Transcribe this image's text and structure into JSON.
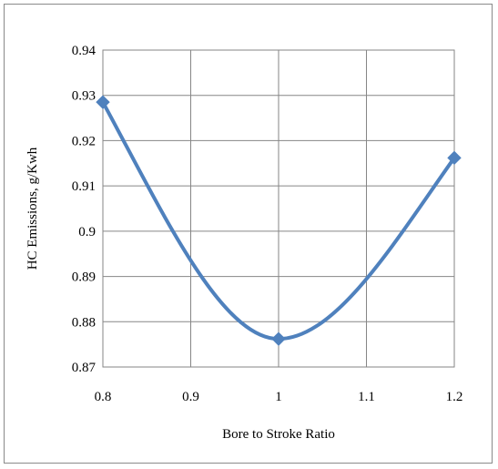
{
  "chart_data": {
    "type": "line",
    "title": "",
    "xlabel": "Bore to Stroke Ratio",
    "ylabel": "HC Emissions, g/Kwh",
    "xlim": [
      0.8,
      1.2
    ],
    "ylim": [
      0.87,
      0.94
    ],
    "x_ticks": [
      0.8,
      0.9,
      1.0,
      1.1,
      1.2
    ],
    "x_tick_labels": [
      "0.8",
      "0.9",
      "1",
      "1.1",
      "1.2"
    ],
    "y_ticks": [
      0.87,
      0.88,
      0.89,
      0.9,
      0.91,
      0.92,
      0.93,
      0.94
    ],
    "y_tick_labels": [
      "0.87",
      "0.88",
      "0.89",
      "0.9",
      "0.91",
      "0.92",
      "0.93",
      "0.94"
    ],
    "grid": true,
    "legend": "none",
    "smooth": true,
    "marker": "diamond",
    "color": "#4F81BD",
    "series": [
      {
        "x": [
          0.8,
          1.0,
          1.2
        ],
        "y": [
          0.9285,
          0.8762,
          0.9162
        ]
      }
    ]
  }
}
